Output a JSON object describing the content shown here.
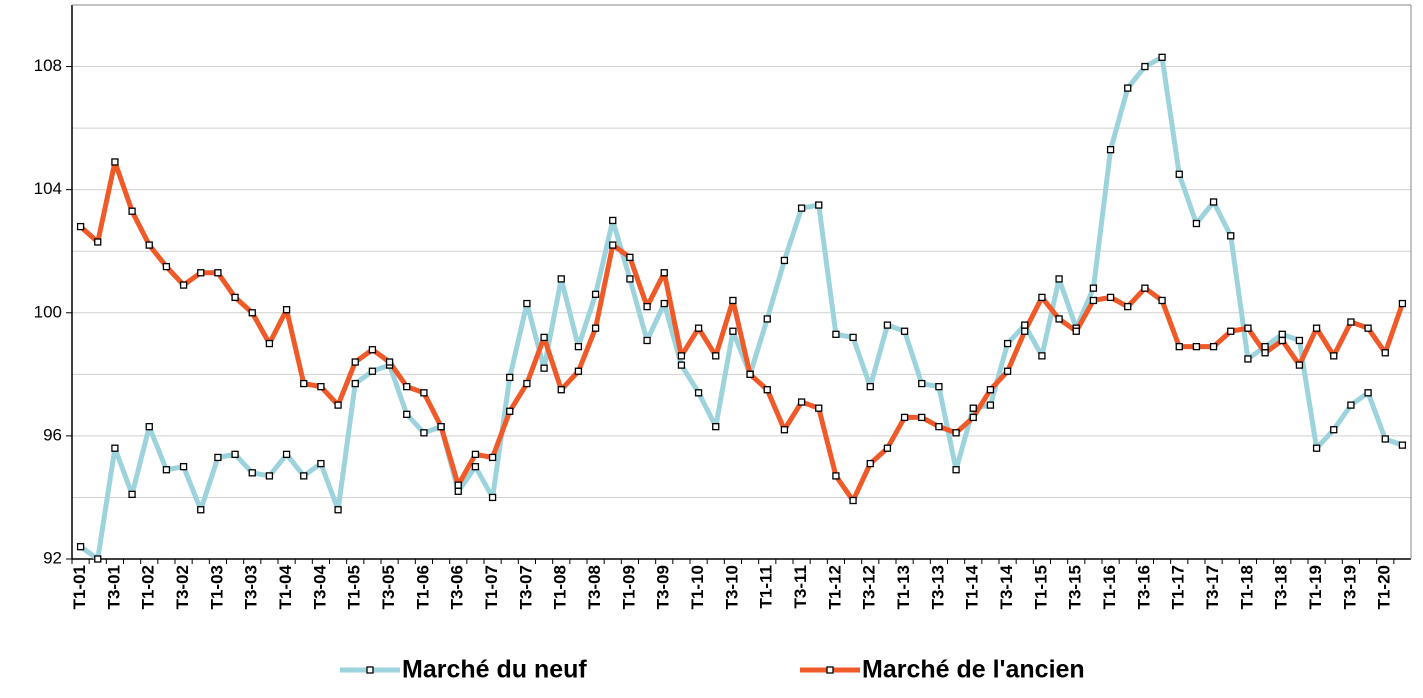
{
  "chart_data": {
    "type": "line",
    "categories": [
      "T1-01",
      null,
      "T3-01",
      null,
      "T1-02",
      null,
      "T3-02",
      null,
      "T1-03",
      null,
      "T3-03",
      null,
      "T1-04",
      null,
      "T3-04",
      null,
      "T1-05",
      null,
      "T3-05",
      null,
      "T1-06",
      null,
      "T3-06",
      null,
      "T1-07",
      null,
      "T3-07",
      null,
      "T1-08",
      null,
      "T3-08",
      null,
      "T1-09",
      null,
      "T3-09",
      null,
      "T1-10",
      null,
      "T3-10",
      null,
      "T1-11",
      null,
      "T3-11",
      null,
      "T1-12",
      null,
      "T3-12",
      null,
      "T1-13",
      null,
      "T3-13",
      null,
      "T1-14",
      null,
      "T3-14",
      null,
      "T1-15",
      null,
      "T3-15",
      null,
      "T1-16",
      null,
      "T3-16",
      null,
      "T1-17",
      null,
      "T3-17",
      null,
      "T1-18",
      null,
      "T3-18",
      null,
      "T1-19",
      null,
      "T3-19",
      null,
      "T1-20",
      null
    ],
    "series": [
      {
        "name": "Marché du neuf",
        "color": "#9dd3dc",
        "values": [
          92.4,
          92.0,
          95.6,
          94.1,
          96.3,
          94.9,
          95.0,
          93.6,
          95.3,
          95.4,
          94.8,
          94.7,
          95.4,
          94.7,
          95.1,
          93.6,
          97.7,
          98.1,
          98.3,
          96.7,
          96.1,
          96.3,
          94.2,
          95.0,
          94.0,
          97.9,
          100.3,
          98.2,
          101.1,
          98.9,
          100.6,
          103.0,
          101.1,
          99.1,
          100.3,
          98.3,
          97.4,
          96.3,
          99.4,
          98.0,
          99.8,
          101.7,
          103.4,
          103.5,
          99.3,
          99.2,
          97.6,
          99.6,
          99.4,
          97.7,
          97.6,
          94.9,
          96.9,
          97.0,
          99.0,
          99.6,
          98.6,
          101.1,
          99.5,
          100.8,
          105.3,
          107.3,
          108.0,
          108.3,
          104.5,
          102.9,
          103.6,
          102.5,
          98.5,
          98.9,
          99.3,
          99.1,
          95.6,
          96.2,
          97.0,
          97.4,
          95.9,
          95.7
        ]
      },
      {
        "name": "Marché de l'ancien",
        "color": "#f05a28",
        "values": [
          102.8,
          102.3,
          104.9,
          103.3,
          102.2,
          101.5,
          100.9,
          101.3,
          101.3,
          100.5,
          100.0,
          99.0,
          100.1,
          97.7,
          97.6,
          97.0,
          98.4,
          98.8,
          98.4,
          97.6,
          97.4,
          96.3,
          94.4,
          95.4,
          95.3,
          96.8,
          97.7,
          99.2,
          97.5,
          98.1,
          99.5,
          102.2,
          101.8,
          100.2,
          101.3,
          98.6,
          99.5,
          98.6,
          100.4,
          98.0,
          97.5,
          96.2,
          97.1,
          96.9,
          94.7,
          93.9,
          95.1,
          95.6,
          96.6,
          96.6,
          96.3,
          96.1,
          96.6,
          97.5,
          98.1,
          99.4,
          100.5,
          99.8,
          99.4,
          100.4,
          100.5,
          100.2,
          100.8,
          100.4,
          98.9,
          98.9,
          98.9,
          99.4,
          99.5,
          98.7,
          99.1,
          98.3,
          99.5,
          98.6,
          99.7,
          99.5,
          98.7,
          100.3
        ]
      }
    ],
    "ylim": [
      92,
      110
    ],
    "yticks": [
      92,
      96,
      100,
      104,
      108
    ],
    "minor_yticks": [
      94,
      98,
      102,
      106,
      110
    ],
    "grid": true
  }
}
